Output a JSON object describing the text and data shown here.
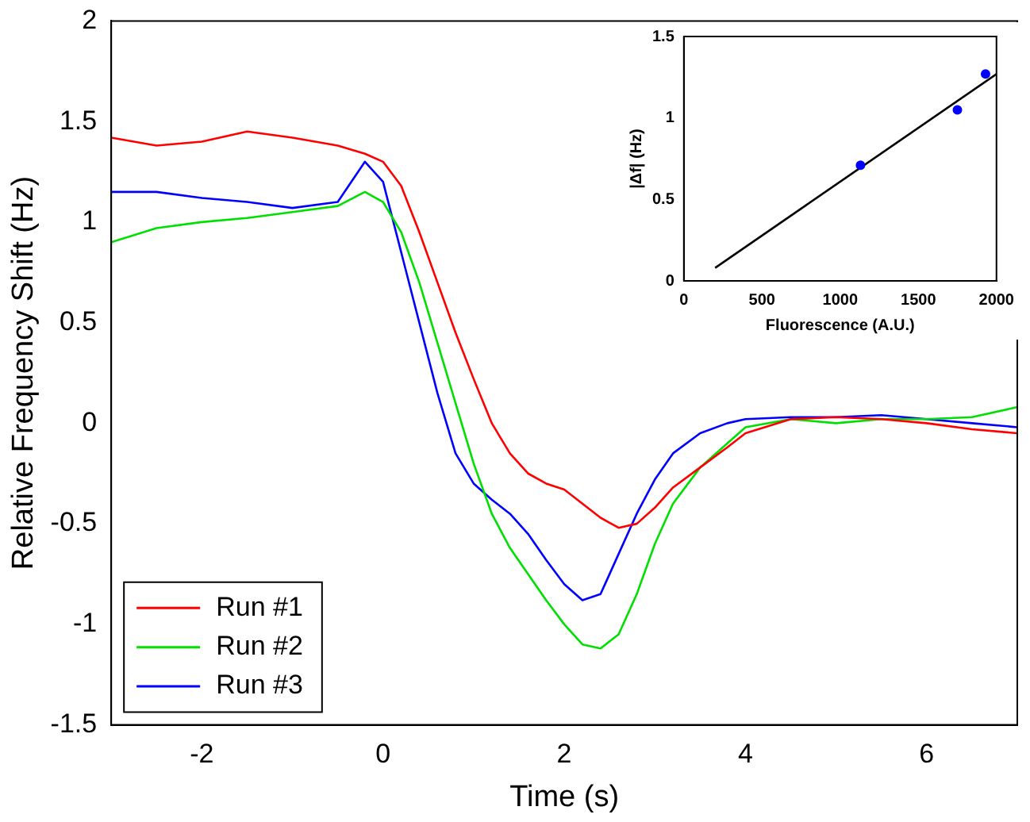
{
  "chart_data": [
    {
      "type": "line",
      "xlabel": "Time (s)",
      "ylabel": "Relative Frequency Shift (Hz)",
      "xlim": [
        -3,
        7
      ],
      "xticks": [
        -2,
        0,
        2,
        4,
        6
      ],
      "ylim": [
        -1.5,
        2
      ],
      "yticks": [
        -1.5,
        -1,
        -0.5,
        0,
        0.5,
        1,
        1.5,
        2
      ],
      "legend": "bottom left",
      "marker": "none",
      "grid": false,
      "x": [
        -3,
        -2.5,
        -2,
        -1.5,
        -1,
        -0.5,
        -0.2,
        0,
        0.2,
        0.4,
        0.6,
        0.8,
        1,
        1.2,
        1.4,
        1.6,
        1.8,
        2,
        2.2,
        2.4,
        2.6,
        2.8,
        3,
        3.2,
        3.5,
        3.8,
        4,
        4.5,
        5,
        5.5,
        6,
        6.5,
        7
      ],
      "series": [
        {
          "name": "Run #1",
          "color": "#ff0000",
          "values": [
            1.42,
            1.38,
            1.4,
            1.45,
            1.42,
            1.38,
            1.34,
            1.3,
            1.18,
            0.95,
            0.7,
            0.45,
            0.22,
            0.0,
            -0.15,
            -0.25,
            -0.3,
            -0.33,
            -0.4,
            -0.47,
            -0.52,
            -0.5,
            -0.42,
            -0.32,
            -0.22,
            -0.12,
            -0.05,
            0.02,
            0.03,
            0.02,
            0.0,
            -0.03,
            -0.05
          ]
        },
        {
          "name": "Run #2",
          "color": "#00e000",
          "values": [
            0.9,
            0.97,
            1.0,
            1.02,
            1.05,
            1.08,
            1.15,
            1.1,
            0.95,
            0.7,
            0.4,
            0.1,
            -0.2,
            -0.45,
            -0.62,
            -0.75,
            -0.88,
            -1.0,
            -1.1,
            -1.12,
            -1.05,
            -0.85,
            -0.6,
            -0.4,
            -0.22,
            -0.1,
            -0.02,
            0.02,
            0.0,
            0.02,
            0.02,
            0.03,
            0.08
          ]
        },
        {
          "name": "Run #3",
          "color": "#0000ff",
          "values": [
            1.15,
            1.15,
            1.12,
            1.1,
            1.07,
            1.1,
            1.3,
            1.2,
            0.85,
            0.5,
            0.15,
            -0.15,
            -0.3,
            -0.38,
            -0.45,
            -0.55,
            -0.68,
            -0.8,
            -0.88,
            -0.85,
            -0.65,
            -0.45,
            -0.28,
            -0.15,
            -0.05,
            0.0,
            0.02,
            0.03,
            0.03,
            0.04,
            0.02,
            0.0,
            -0.02
          ]
        }
      ]
    },
    {
      "type": "scatter",
      "xlabel": "Fluorescence (A.U.)",
      "ylabel": "|Δf| (Hz)",
      "xlim": [
        0,
        2000
      ],
      "xticks": [
        0,
        500,
        1000,
        1500,
        2000
      ],
      "ylim": [
        0,
        1.5
      ],
      "yticks": [
        0,
        0.5,
        1,
        1.5
      ],
      "legend": false,
      "grid": false,
      "series": [
        {
          "type": "scatter",
          "marker": "circle",
          "color": "#0000ff",
          "x": [
            1130,
            1750,
            1930
          ],
          "values": [
            0.71,
            1.05,
            1.27
          ]
        },
        {
          "type": "line",
          "marker": "none",
          "color": "#000000",
          "x": [
            200,
            2000
          ],
          "values": [
            0.08,
            1.27
          ]
        }
      ]
    }
  ]
}
